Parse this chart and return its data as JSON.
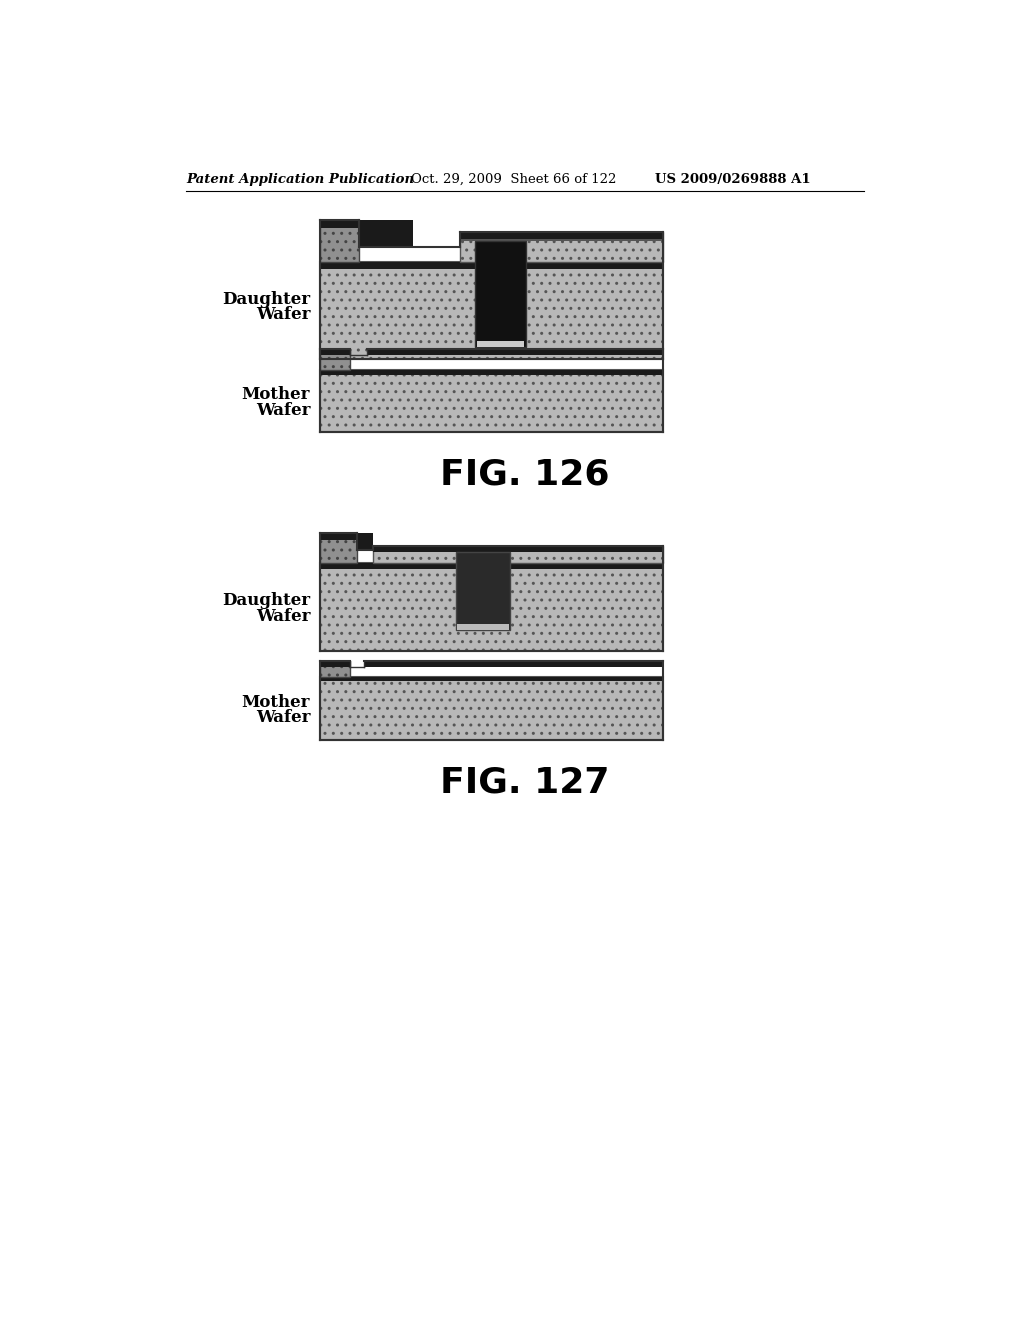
{
  "background_color": "#ffffff",
  "header_text": "Patent Application Publication",
  "header_date": "Oct. 29, 2009  Sheet 66 of 122",
  "header_patent": "US 2009/0269888 A1",
  "header_fontsize": 9.5,
  "fig126_label": "FIG. 126",
  "fig127_label": "FIG. 127",
  "fig_label_fontsize": 26,
  "label_fontsize": 12,
  "color_wafer": "#b8b8b8",
  "color_black_layer": "#1a1a1a",
  "color_small_bump": "#909090",
  "color_pit": "#222222",
  "color_top_layer_right": "#b0b0b0"
}
